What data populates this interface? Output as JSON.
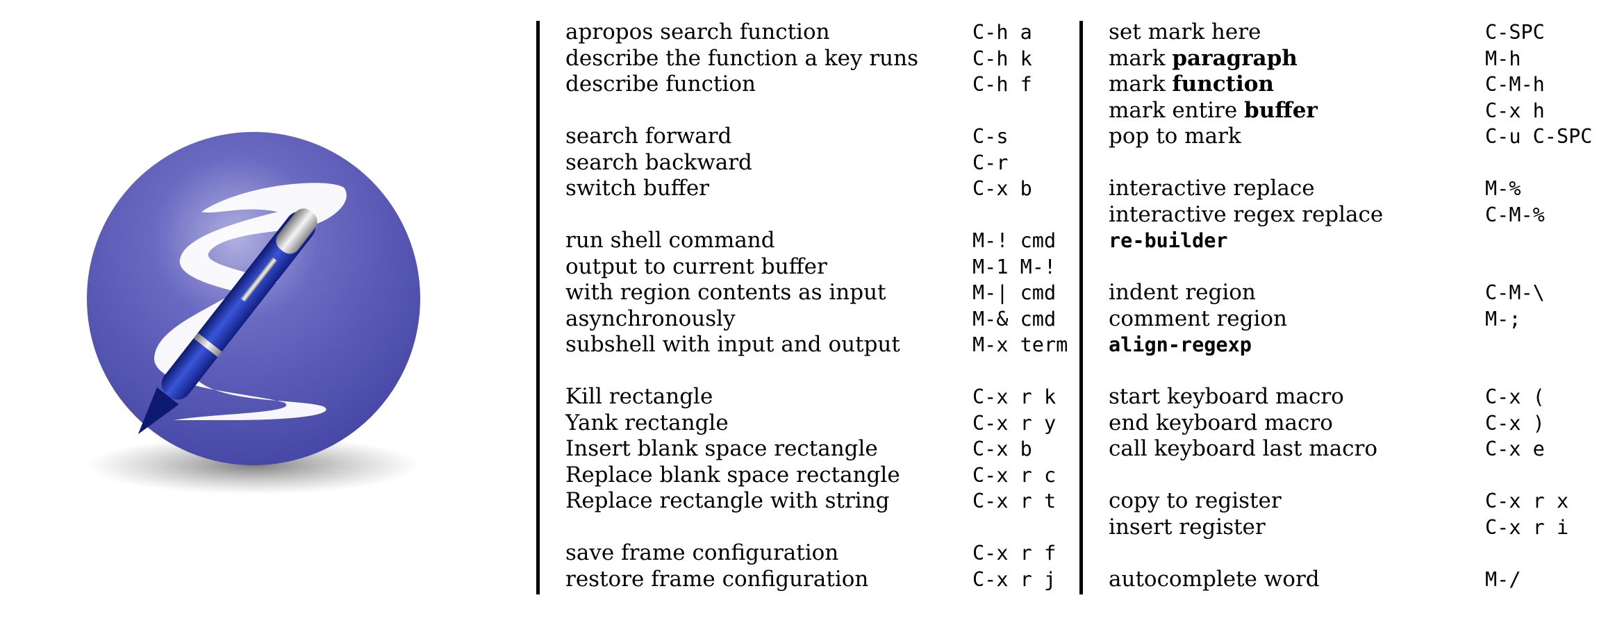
{
  "logo": {
    "name": "emacs-logo"
  },
  "left_column": {
    "groups": [
      [
        {
          "desc": "apropos search function",
          "key": "C-h a"
        },
        {
          "desc": "describe the function a key runs",
          "key": "C-h k"
        },
        {
          "desc": "describe function",
          "key": "C-h f"
        }
      ],
      [
        {
          "desc": "search forward",
          "key": "C-s"
        },
        {
          "desc": "search backward",
          "key": "C-r"
        },
        {
          "desc": "switch buffer",
          "key": "C-x b"
        }
      ],
      [
        {
          "desc": "run shell command",
          "key": "M-! cmd"
        },
        {
          "desc": "output to current buffer",
          "key": "M-1 M-!"
        },
        {
          "desc": "with region contents as input",
          "key": "M-| cmd"
        },
        {
          "desc": "asynchronously",
          "key": "M-& cmd"
        },
        {
          "desc": "subshell with input and output",
          "key": "M-x term"
        }
      ],
      [
        {
          "desc": "Kill rectangle",
          "key": "C-x r k"
        },
        {
          "desc": "Yank rectangle",
          "key": "C-x r y"
        },
        {
          "desc": "Insert blank space rectangle",
          "key": "C-x b"
        },
        {
          "desc": "Replace blank space rectangle",
          "key": "C-x r c"
        },
        {
          "desc": "Replace rectangle with string",
          "key": "C-x r t"
        }
      ],
      [
        {
          "desc": "save frame configuration",
          "key": "C-x r f"
        },
        {
          "desc": "restore frame configuration",
          "key": "C-x r j"
        }
      ]
    ]
  },
  "right_column": {
    "groups": [
      [
        {
          "desc": "set mark here",
          "key": "C-SPC"
        },
        {
          "desc": "mark ",
          "bold": "paragraph",
          "key": "M-h"
        },
        {
          "desc": "mark ",
          "bold": "function",
          "key": "C-M-h"
        },
        {
          "desc": "mark entire ",
          "bold": "buffer",
          "key": "C-x h"
        },
        {
          "desc": "pop to mark",
          "key": "C-u C-SPC"
        }
      ],
      [
        {
          "desc": "interactive replace",
          "key": "M-%"
        },
        {
          "desc": "interactive regex replace",
          "key": "C-M-%"
        },
        {
          "cmd": "re-builder",
          "key": ""
        }
      ],
      [
        {
          "desc": "indent region",
          "key": "C-M-\\"
        },
        {
          "desc": "comment region",
          "key": "M-;"
        },
        {
          "cmd": "align-regexp",
          "key": ""
        }
      ],
      [
        {
          "desc": "start keyboard macro",
          "key": "C-x ("
        },
        {
          "desc": "end keyboard macro",
          "key": "C-x )"
        },
        {
          "desc": "call keyboard last macro",
          "key": "C-x e"
        }
      ],
      [
        {
          "desc": "copy to register",
          "key": "C-x r x"
        },
        {
          "desc": "insert register",
          "key": "C-x r i"
        }
      ],
      [
        {
          "desc": "autocomplete word",
          "key": "M-/"
        }
      ]
    ]
  },
  "colors": {
    "sphere": "#5c5cb8",
    "sphere_dark": "#3d3d9a",
    "pen": "#1a2a8c",
    "text": "#000000"
  }
}
